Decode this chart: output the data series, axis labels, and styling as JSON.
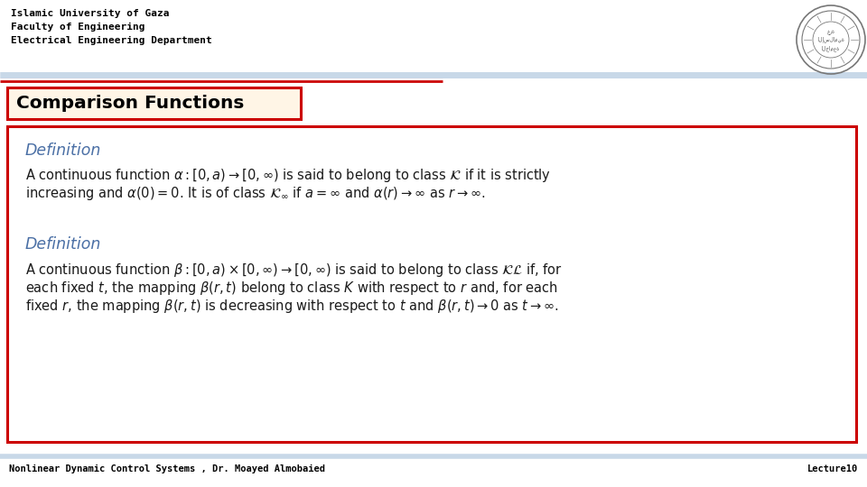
{
  "title_lines": [
    "Islamic University of Gaza",
    "Faculty of Engineering",
    "Electrical Engineering Department"
  ],
  "slide_title": "Comparison Functions",
  "definition1_heading": "Definition",
  "definition1_line1": "A continuous function $\\alpha : [0, a) \\rightarrow [0, \\infty)$ is said to belong to class $\\mathcal{K}$ if it is strictly",
  "definition1_line2": "increasing and $\\alpha(0) = 0$. It is of class $\\mathcal{K}_{\\infty}$ if $a = \\infty$ and $\\alpha(r) \\rightarrow \\infty$ as $r \\rightarrow \\infty$.",
  "definition2_heading": "Definition",
  "definition2_line1": "A continuous function $\\beta : [0, a) \\times [0, \\infty) \\rightarrow [0, \\infty)$ is said to belong to class $\\mathcal{KL}$ if, for",
  "definition2_line2": "each fixed $t$, the mapping $\\beta(r, t)$ belong to class $K$ with respect to $r$ and, for each",
  "definition2_line3": "fixed $r$, the mapping $\\beta(r, t)$ is decreasing with respect to $t$ and $\\beta(r, t) \\rightarrow 0$ as $t \\rightarrow \\infty$.",
  "footer_left": "Nonlinear Dynamic Control Systems , Dr. Moayed Almobaied",
  "footer_right": "Lecture10",
  "bg_color": "#ffffff",
  "header_text_color": "#000000",
  "title_box_bg": "#fff5e6",
  "title_box_border": "#cc0000",
  "slide_title_color": "#000000",
  "main_box_border": "#cc0000",
  "definition_heading_color": "#4a6fa5",
  "body_text_color": "#1a1a1a",
  "footer_text_color": "#000000",
  "header_line1_color": "#c8d8e8",
  "header_line2_color": "#cc0000",
  "footer_line_color": "#c8d8e8"
}
